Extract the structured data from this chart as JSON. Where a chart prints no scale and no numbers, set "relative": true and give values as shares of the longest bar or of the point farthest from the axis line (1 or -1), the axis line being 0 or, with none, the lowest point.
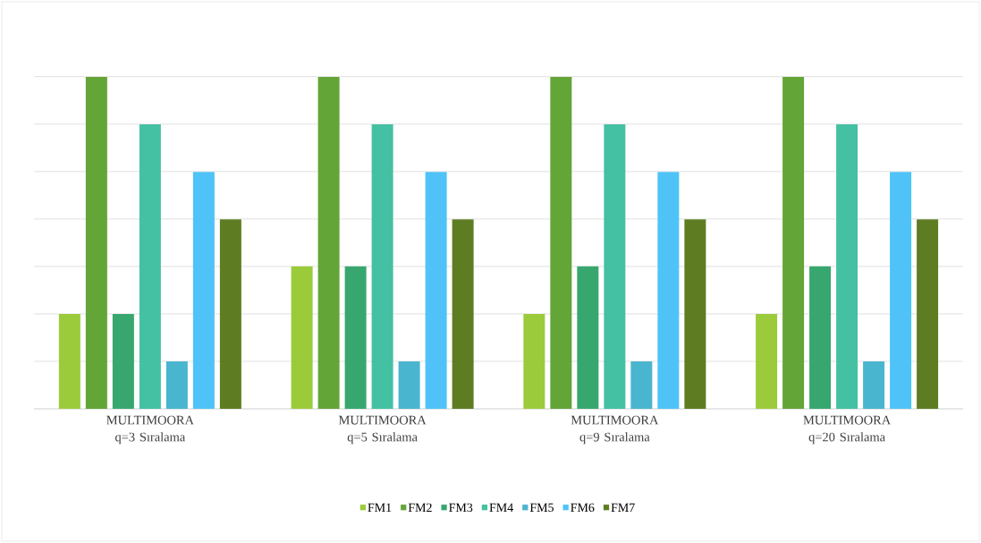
{
  "chart_data": {
    "type": "bar",
    "relative": true,
    "grid": "y",
    "legend": "bottom",
    "categories": [
      "MULTIMOORA q=3 Sıralama",
      "MULTIMOORA q=5 Sıralama",
      "MULTIMOORA q=9 Sıralama",
      "MULTIMOORA q=20 Sıralama"
    ],
    "series": [
      {
        "name": "FM1",
        "color": "#9bcb3a",
        "values": [
          0.286,
          0.429,
          0.286,
          0.286
        ]
      },
      {
        "name": "FM2",
        "color": "#63a537",
        "values": [
          1,
          1,
          1,
          1
        ]
      },
      {
        "name": "FM3",
        "color": "#37a76f",
        "values": [
          0.286,
          0.429,
          0.429,
          0.429
        ]
      },
      {
        "name": "FM4",
        "color": "#44c1a3",
        "values": [
          0.857,
          0.857,
          0.857,
          0.857
        ]
      },
      {
        "name": "FM5",
        "color": "#4ab5cf",
        "values": [
          0.143,
          0.143,
          0.143,
          0.143
        ]
      },
      {
        "name": "FM6",
        "color": "#4fc3f7",
        "values": [
          0.714,
          0.714,
          0.714,
          0.714
        ]
      },
      {
        "name": "FM7",
        "color": "#5e7d22",
        "values": [
          0.571,
          0.571,
          0.571,
          0.571
        ]
      }
    ]
  }
}
